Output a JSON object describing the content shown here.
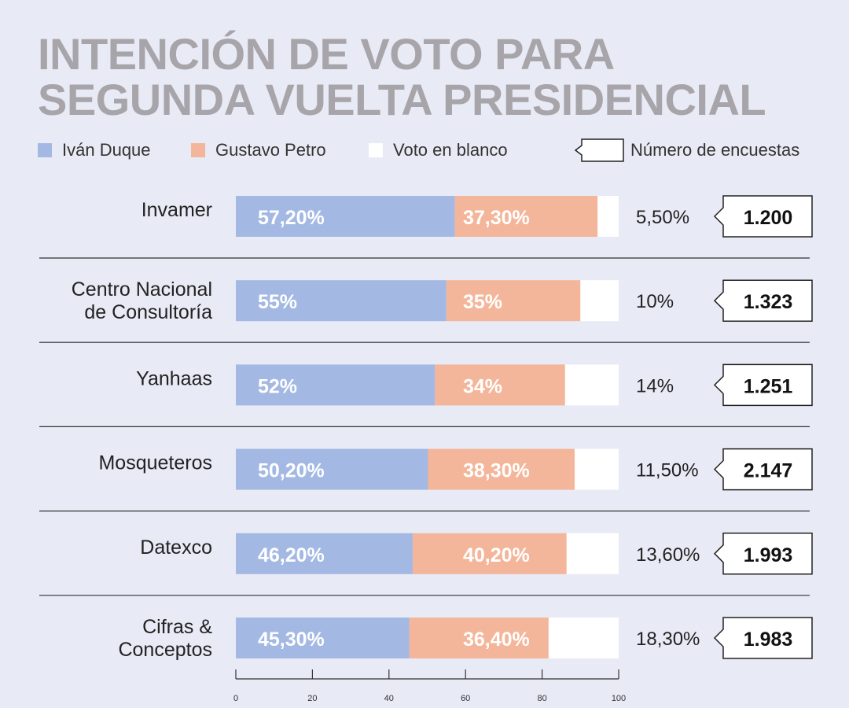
{
  "title": "INTENCIÓN DE VOTO PARA SEGUNDA VUELTA PRESIDENCIAL",
  "legend": [
    {
      "label": "Iván Duque",
      "color": "#a3b9e3"
    },
    {
      "label": "Gustavo Petro",
      "color": "#f4b69a"
    },
    {
      "label": "Voto en blanco",
      "color": "#ffffff"
    }
  ],
  "flag_legend": "Número de encuestas",
  "chart_data": {
    "type": "bar",
    "stacked": true,
    "orientation": "horizontal",
    "categories": [
      [
        "Invamer"
      ],
      [
        "Centro Nacional",
        "de Consultoría"
      ],
      [
        "Yanhaas"
      ],
      [
        "Mosqueteros"
      ],
      [
        "Datexco"
      ],
      [
        "Cifras &",
        "Conceptos"
      ]
    ],
    "series": [
      {
        "name": "Iván Duque",
        "color": "#a3b9e3",
        "values": [
          57.2,
          55,
          52,
          50.2,
          46.2,
          45.3
        ],
        "labels": [
          "57,20%",
          "55%",
          "52%",
          "50,20%",
          "46,20%",
          "45,30%"
        ]
      },
      {
        "name": "Gustavo Petro",
        "color": "#f4b69a",
        "values": [
          37.3,
          35,
          34,
          38.3,
          40.2,
          36.4
        ],
        "labels": [
          "37,30%",
          "35%",
          "34%",
          "38,30%",
          "40,20%",
          "36,40%"
        ]
      },
      {
        "name": "Voto en blanco",
        "color": "#ffffff",
        "values": [
          5.5,
          10,
          14,
          11.5,
          13.6,
          18.3
        ],
        "labels": [
          "5,50%",
          "10%",
          "14%",
          "11,50%",
          "13,60%",
          "18,30%"
        ]
      }
    ],
    "sample_sizes": [
      "1.200",
      "1.323",
      "1.251",
      "2.147",
      "1.993",
      "1.983"
    ],
    "xlim": [
      0,
      100
    ],
    "xticks": [
      0,
      20,
      40,
      60,
      80,
      100
    ]
  }
}
